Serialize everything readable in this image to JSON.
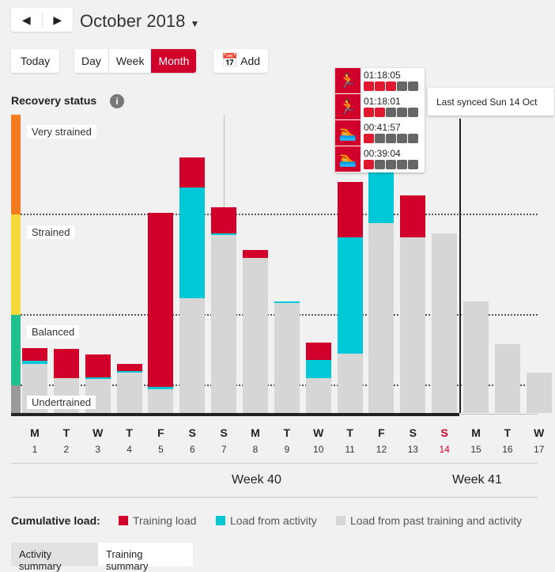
{
  "header": {
    "title": "October 2018",
    "today": "Today",
    "views": [
      "Day",
      "Week",
      "Month"
    ],
    "active_view": "Month",
    "add": "Add"
  },
  "recovery": {
    "title": "Recovery status",
    "zones": [
      "Very strained",
      "Strained",
      "Balanced",
      "Undertrained"
    ],
    "zone_colors": [
      "#f47b20",
      "#f5d83a",
      "#1fbf8f",
      "#9a9a9a"
    ]
  },
  "sync": "Last synced Sun 14 Oct",
  "tooltip": [
    {
      "icon": "running-icon",
      "time": "01:18:05",
      "level": 3
    },
    {
      "icon": "running-icon",
      "time": "01:18:01",
      "level": 2
    },
    {
      "icon": "swimming-icon",
      "time": "00:41:57",
      "level": 1
    },
    {
      "icon": "swimming-icon",
      "time": "00:39:04",
      "level": 1
    }
  ],
  "chart_data": {
    "type": "bar",
    "stacked": true,
    "ylim": [
      0,
      100
    ],
    "categories": [
      "M",
      "T",
      "W",
      "T",
      "F",
      "S",
      "S",
      "M",
      "T",
      "W",
      "T",
      "F",
      "S",
      "S",
      "M",
      "T",
      "W"
    ],
    "dates": [
      "1",
      "2",
      "3",
      "4",
      "5",
      "6",
      "7",
      "8",
      "9",
      "10",
      "11",
      "12",
      "13",
      "14",
      "15",
      "16",
      "17"
    ],
    "series": [
      {
        "name": "Load from past training and activity",
        "color": "#d6d6d6",
        "values": [
          16.4,
          11.7,
          11.4,
          13.5,
          8,
          38.5,
          59.7,
          52,
          36.9,
          11.7,
          19.9,
          63.7,
          58.9,
          60.2,
          37.4,
          23.1,
          13.5
        ]
      },
      {
        "name": "Load from activity",
        "color": "#00c8d7",
        "values": [
          1.1,
          0,
          0.5,
          0.5,
          0.8,
          37.1,
          0.5,
          0,
          0.5,
          6.1,
          39,
          17.8,
          0,
          0,
          0,
          0,
          0
        ]
      },
      {
        "name": "Training load",
        "color": "#d0002a",
        "values": [
          4.2,
          9.8,
          7.7,
          2.4,
          58.4,
          10.1,
          8.8,
          2.7,
          0,
          5.8,
          18.6,
          0,
          14.1,
          0,
          0,
          0,
          0
        ]
      }
    ],
    "zone_bounds": [
      9.3,
      33,
      66.6
    ],
    "today_index": 13
  },
  "weeks": [
    "Week 40",
    "Week 41"
  ],
  "legend": {
    "title": "Cumulative load:",
    "items": [
      "Training load",
      "Load from activity",
      "Load from past training and activity"
    ]
  },
  "tabs": [
    "Activity summary",
    "Training summary"
  ]
}
